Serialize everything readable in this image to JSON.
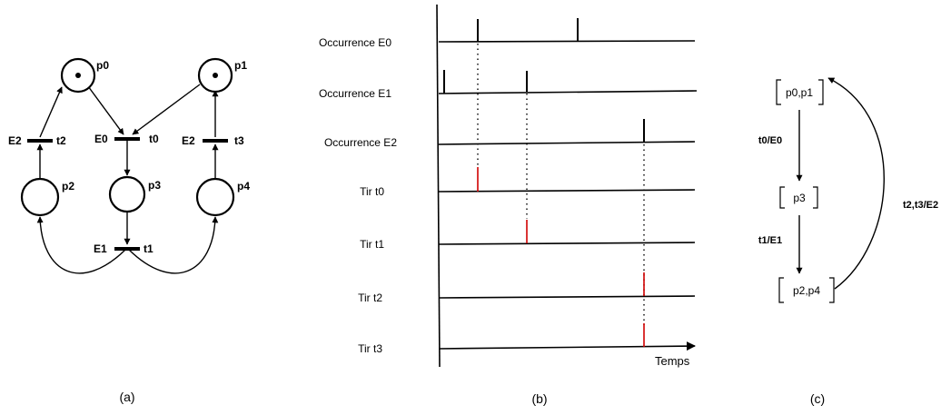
{
  "panel_a": {
    "caption": "(a)",
    "places": {
      "p0": "p0",
      "p1": "p1",
      "p2": "p2",
      "p3": "p3",
      "p4": "p4"
    },
    "transitions": {
      "t0": "t0",
      "t1": "t1",
      "t2": "t2",
      "t3": "t3"
    },
    "events": {
      "t0": "E0",
      "t1": "E1",
      "t2": "E2",
      "t3": "E2"
    }
  },
  "panel_b": {
    "caption": "(b)",
    "rows": {
      "e0": "Occurrence E0",
      "e1": "Occurrence E1",
      "e2": "Occurrence E2",
      "t0": "Tir t0",
      "t1": "Tir t1",
      "t2": "Tir t2",
      "t3": "Tir t3"
    },
    "time_label": "Temps",
    "colors": {
      "firing": "#d00000",
      "occurrence": "#000000"
    }
  },
  "panel_c": {
    "caption": "(c)",
    "states": {
      "s0": "p0,p1",
      "s1": "p3",
      "s2": "p2,p4"
    },
    "edges": {
      "e01": "t0/E0",
      "e12": "t1/E1",
      "e20": "t2,t3/E2"
    }
  }
}
